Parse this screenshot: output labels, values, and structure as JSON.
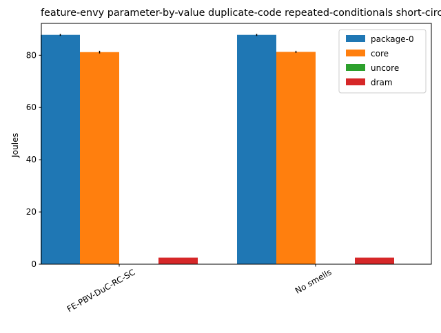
{
  "chart_data": {
    "type": "bar",
    "title": "feature-envy parameter-by-value duplicate-code repeated-conditionals short-circuit",
    "xlabel": "",
    "ylabel": "Joules",
    "categories": [
      "FE-PBV-DuC-RC-SC",
      "No smells"
    ],
    "series": [
      {
        "name": "package-0",
        "color": "#1f77b4",
        "values": [
          87.8,
          87.8
        ],
        "errors": [
          0.4,
          0.4
        ]
      },
      {
        "name": "core",
        "color": "#ff7f0e",
        "values": [
          81.2,
          81.3
        ],
        "errors": [
          0.5,
          0.4
        ]
      },
      {
        "name": "uncore",
        "color": "#2ca02c",
        "values": [
          0.0,
          0.0
        ],
        "errors": [
          0,
          0
        ]
      },
      {
        "name": "dram",
        "color": "#d62728",
        "values": [
          2.5,
          2.5
        ],
        "errors": [
          0,
          0
        ]
      }
    ],
    "ylim": [
      0,
      92.2
    ],
    "yticks": [
      0,
      20,
      40,
      60,
      80
    ],
    "grid": false,
    "legend_position": "top-right"
  }
}
